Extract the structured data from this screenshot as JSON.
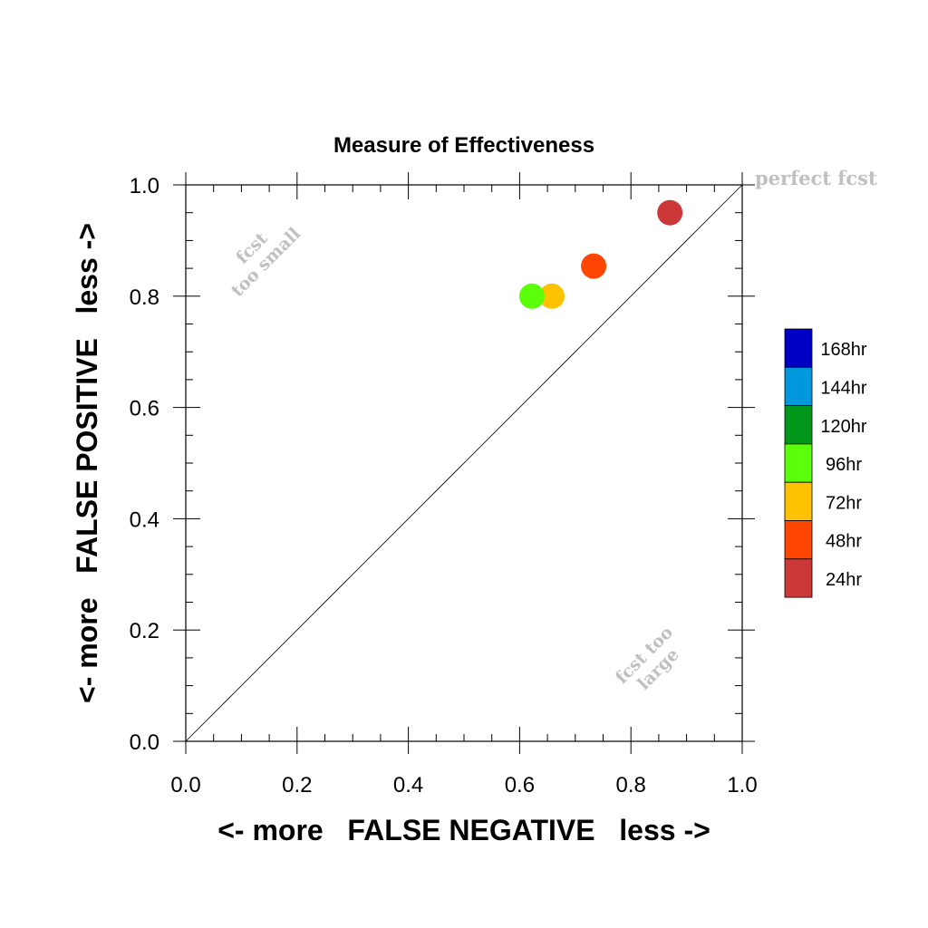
{
  "chart_data": {
    "type": "scatter",
    "title": "Measure of Effectiveness",
    "xlabel": "<- more   FALSE NEGATIVE   less ->",
    "ylabel": "<- more   FALSE POSITIVE   less ->",
    "xlim": [
      0.0,
      1.0
    ],
    "ylim": [
      0.0,
      1.0
    ],
    "x_ticks": [
      "0.0",
      "0.2",
      "0.4",
      "0.6",
      "0.8",
      "1.0"
    ],
    "y_ticks": [
      "0.0",
      "0.2",
      "0.4",
      "0.6",
      "0.8",
      "1.0"
    ],
    "grid": false,
    "diagonal_line": true,
    "annotations": [
      {
        "text": "perfect fcst"
      },
      {
        "text": "fcst"
      },
      {
        "text": "too small"
      },
      {
        "text": "fcst too"
      },
      {
        "text": "large"
      }
    ],
    "legend": {
      "placement": "right",
      "entries": [
        {
          "label": "168hr",
          "color": "#0000c4"
        },
        {
          "label": "144hr",
          "color": "#0098dc"
        },
        {
          "label": "120hr",
          "color": "#00961a"
        },
        {
          "label": "96hr",
          "color": "#5bff0a"
        },
        {
          "label": "72hr",
          "color": "#ffc200"
        },
        {
          "label": "48hr",
          "color": "#ff4600"
        },
        {
          "label": "24hr",
          "color": "#cc3838"
        }
      ]
    },
    "series": [
      {
        "name": "24hr",
        "color": "#cc3838",
        "x": 0.87,
        "y": 0.95
      },
      {
        "name": "48hr",
        "color": "#ff4600",
        "x": 0.733,
        "y": 0.854
      },
      {
        "name": "72hr",
        "color": "#ffc200",
        "x": 0.658,
        "y": 0.8
      },
      {
        "name": "96hr",
        "color": "#5bff0a",
        "x": 0.622,
        "y": 0.8
      }
    ]
  }
}
